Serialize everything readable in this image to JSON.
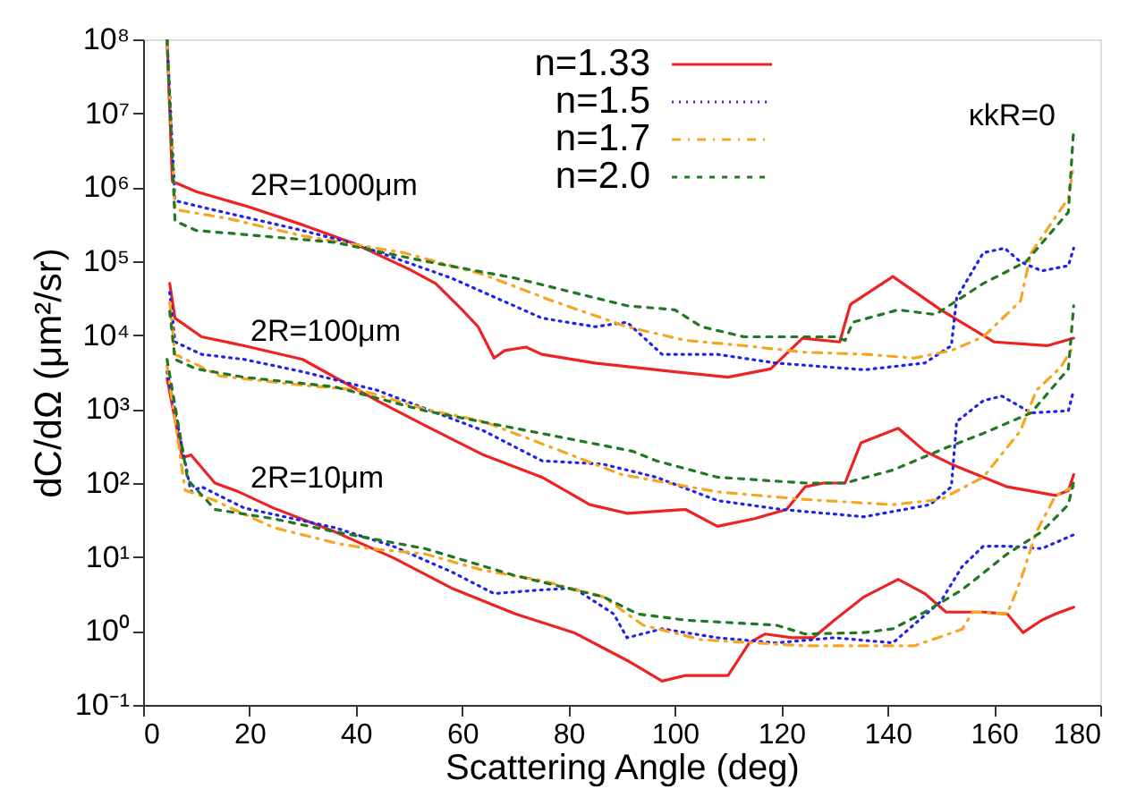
{
  "chart_data": {
    "type": "line",
    "xlabel": "Scattering Angle (deg)",
    "ylabel": "dC/dΩ (μm²/sr)",
    "xlim": [
      0,
      180
    ],
    "xticks": [
      0,
      20,
      40,
      60,
      80,
      100,
      120,
      140,
      160,
      180
    ],
    "ylim": [
      0.1,
      100000000
    ],
    "log": "y",
    "yticks": [
      {
        "value": 0.1,
        "label": "10⁻¹"
      },
      {
        "value": 1,
        "label": "10⁰"
      },
      {
        "value": 10,
        "label": "10¹"
      },
      {
        "value": 100,
        "label": "10²"
      },
      {
        "value": 1000,
        "label": "10³"
      },
      {
        "value": 10000,
        "label": "10⁴"
      },
      {
        "value": 100000,
        "label": "10⁵"
      },
      {
        "value": 1000000,
        "label": "10⁶"
      },
      {
        "value": 10000000,
        "label": "10⁷"
      },
      {
        "value": 100000000,
        "label": "10⁸"
      }
    ],
    "grid": false,
    "legend": "top",
    "marker": "none",
    "annotations": [
      "2R=1000μm",
      "2R=100μm",
      "2R=10μm",
      "κkR=0"
    ],
    "series": [
      {
        "name": "n=1.33",
        "color": "#ee2222",
        "line_style": "solid",
        "x": [
          4.5,
          5.5,
          10,
          20,
          30,
          40,
          50,
          55,
          60,
          63,
          66,
          68,
          72,
          75,
          85,
          100,
          110,
          118,
          124,
          131,
          133,
          141,
          150,
          160,
          170,
          175
        ],
        "values": [
          100000000,
          1200000,
          870000,
          540000,
          310000,
          170000,
          78000,
          50000,
          22000,
          13000,
          4900,
          6200,
          6900,
          5500,
          4200,
          3200,
          2700,
          3500,
          9100,
          8100,
          26000,
          62000,
          22000,
          8100,
          7200,
          9100
        ]
      },
      {
        "name": "n=1.5",
        "color": "#2222ee",
        "line_style": "dotted",
        "x": [
          4.5,
          6,
          11,
          30,
          40,
          58,
          75,
          85,
          91,
          97.6,
          108,
          119,
          135.6,
          147,
          152,
          153,
          158,
          162,
          165,
          169,
          174,
          175
        ],
        "values": [
          100000000,
          660000,
          540000,
          260000,
          170000,
          59000,
          17000,
          13000,
          15000,
          5500,
          5500,
          4200,
          3400,
          4200,
          7200,
          32000,
          130000,
          150000,
          98000,
          74000,
          87000,
          150000
        ]
      },
      {
        "name": "n=1.7",
        "color": "#f5a623",
        "line_style": "dashdot",
        "x": [
          4.5,
          6,
          15.8,
          30,
          49,
          64,
          77,
          91,
          102,
          113,
          124,
          136,
          145,
          152,
          158,
          165,
          167,
          174,
          175
        ],
        "values": [
          100000000,
          500000,
          380000,
          220000,
          130000,
          66000,
          29000,
          13000,
          8500,
          7200,
          5900,
          5500,
          4900,
          6200,
          9500,
          29000,
          130000,
          710000,
          2000000
        ]
      },
      {
        "name": "n=2.0",
        "color": "#227722",
        "line_style": "dashed",
        "x": [
          4.5,
          6,
          10,
          19,
          36,
          53,
          70,
          91,
          100,
          105,
          113,
          130,
          132,
          133.5,
          142,
          149,
          158,
          166,
          174,
          175
        ],
        "values": [
          100000000,
          350000,
          260000,
          230000,
          180000,
          100000,
          59000,
          25000,
          22000,
          13000,
          9500,
          9500,
          8500,
          15000,
          22000,
          19000,
          50000,
          98000,
          460000,
          6300000
        ]
      },
      {
        "color": "#ee2222",
        "line_style": "solid",
        "x": [
          5,
          6,
          11,
          19,
          30,
          44,
          53,
          64,
          75,
          84,
          91,
          102,
          108,
          115,
          121,
          124.5,
          128,
          132,
          135,
          142,
          147,
          152,
          162.5,
          171.6,
          174,
          175
        ],
        "values": [
          50000,
          17000,
          9500,
          7200,
          4700,
          1300,
          600,
          240,
          120,
          51,
          39,
          44,
          26,
          33,
          44,
          89,
          100,
          100,
          350,
          550,
          270,
          180,
          89,
          68,
          79,
          130
        ]
      },
      {
        "color": "#2222ee",
        "line_style": "dotted",
        "x": [
          5,
          6,
          11,
          19,
          30,
          44,
          64,
          75,
          86.5,
          91,
          96.5,
          108,
          120,
          135.6,
          148,
          152,
          153,
          158,
          161.5,
          167,
          174,
          175
        ],
        "values": [
          38000,
          8100,
          5500,
          4700,
          3200,
          1800,
          510,
          200,
          180,
          150,
          120,
          58,
          44,
          35,
          51,
          89,
          680,
          1300,
          1500,
          890,
          950,
          1800
        ]
      },
      {
        "color": "#f5a623",
        "line_style": "dashdot",
        "x": [
          5,
          6,
          14.5,
          30,
          41,
          53,
          64,
          77,
          90,
          108,
          124.5,
          141,
          150,
          158,
          165,
          168,
          172.6,
          175
        ],
        "values": [
          28000,
          5500,
          2800,
          2100,
          1800,
          1000,
          680,
          300,
          130,
          76,
          60,
          51,
          60,
          120,
          510,
          1800,
          3700,
          7200
        ]
      },
      {
        "color": "#227722",
        "line_style": "dashed",
        "x": [
          5,
          6,
          10,
          19,
          36,
          53,
          70,
          92,
          96.5,
          108,
          124.5,
          132,
          141,
          151,
          158,
          167,
          174,
          175
        ],
        "values": [
          21000,
          4700,
          3500,
          2700,
          2000,
          950,
          550,
          270,
          200,
          120,
          100,
          100,
          150,
          300,
          470,
          890,
          3500,
          25000
        ]
      },
      {
        "color": "#ee2222",
        "line_style": "solid",
        "x": [
          4.5,
          7.4,
          9,
          13.5,
          18,
          24.5,
          36,
          47,
          58,
          70,
          81,
          91,
          97.6,
          102,
          110,
          114,
          117,
          122,
          126,
          130,
          135.6,
          142,
          147,
          151,
          158,
          162.5,
          165.5,
          169,
          171.6,
          175
        ],
        "values": [
          2600,
          220,
          240,
          100,
          76,
          46,
          22,
          9.8,
          3.8,
          1.7,
          0.95,
          0.4,
          0.21,
          0.25,
          0.25,
          0.69,
          0.91,
          0.81,
          0.81,
          1.4,
          2.9,
          5,
          3.2,
          1.8,
          1.8,
          1.7,
          0.95,
          1.4,
          1.7,
          2.1
        ]
      },
      {
        "color": "#2222ee",
        "line_style": "dotted",
        "x": [
          4.5,
          9,
          11,
          19,
          36,
          47,
          58,
          66,
          75,
          81,
          88.5,
          91,
          97.6,
          108,
          119,
          130,
          141,
          150,
          154,
          158,
          162.5,
          169,
          175
        ],
        "values": [
          3200,
          76,
          89,
          46,
          25,
          14,
          6.3,
          3.2,
          3.6,
          3.8,
          1.7,
          0.81,
          1.07,
          0.81,
          0.69,
          0.81,
          0.69,
          2.5,
          7.4,
          14,
          14,
          13,
          20
        ]
      },
      {
        "color": "#f5a623",
        "line_style": "dashdot",
        "x": [
          4.5,
          7.9,
          13.5,
          24.5,
          37,
          42.5,
          53,
          64,
          75,
          86.5,
          94,
          105,
          124.5,
          145,
          154,
          156,
          162.5,
          165,
          168,
          171.6,
          175
        ],
        "values": [
          3900,
          80,
          58,
          25,
          15,
          13,
          11,
          6.6,
          4.8,
          2.9,
          1.2,
          0.76,
          0.63,
          0.63,
          1.05,
          1.8,
          1.7,
          4.8,
          22,
          68,
          89
        ]
      },
      {
        "color": "#227722",
        "line_style": "dashed",
        "x": [
          4.5,
          8.4,
          13.5,
          24.5,
          36,
          53,
          70,
          86.5,
          93,
          102,
          119,
          124.5,
          135.6,
          141,
          147,
          154,
          162.5,
          169,
          174,
          175
        ],
        "values": [
          4700,
          110,
          44,
          33,
          22,
          13,
          5.6,
          2.9,
          1.7,
          1.4,
          1.2,
          0.91,
          0.95,
          1.07,
          1.8,
          3.6,
          11,
          22,
          51,
          105
        ]
      }
    ]
  }
}
